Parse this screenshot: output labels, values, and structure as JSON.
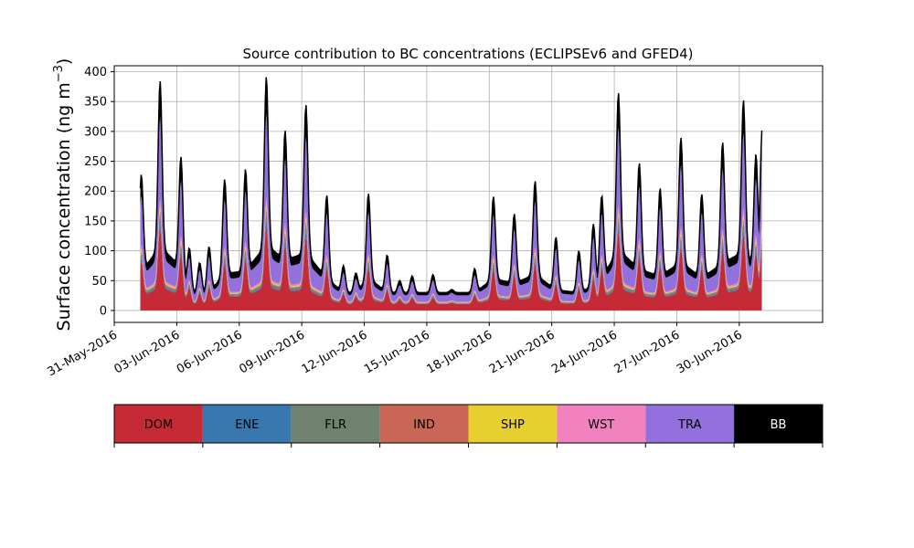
{
  "chart_data": {
    "type": "area",
    "stacked": true,
    "title": "Source contribution to BC concentrations (ECLIPSEv6 and GFED4)",
    "ylabel": "Surface concentration (ng m",
    "ylabel_superscript": "−3",
    "ylabel_close": ")",
    "xlabel": "",
    "ylim": [
      -20,
      410
    ],
    "yticks": [
      0,
      50,
      100,
      150,
      200,
      250,
      300,
      350,
      400
    ],
    "x_start": "2016-05-31",
    "xlim_days": [
      0,
      34
    ],
    "xticks": [
      {
        "day": 0,
        "label": "31-May-2016"
      },
      {
        "day": 3,
        "label": "03-Jun-2016"
      },
      {
        "day": 6,
        "label": "06-Jun-2016"
      },
      {
        "day": 9,
        "label": "09-Jun-2016"
      },
      {
        "day": 12,
        "label": "12-Jun-2016"
      },
      {
        "day": 15,
        "label": "15-Jun-2016"
      },
      {
        "day": 18,
        "label": "18-Jun-2016"
      },
      {
        "day": 21,
        "label": "21-Jun-2016"
      },
      {
        "day": 24,
        "label": "24-Jun-2016"
      },
      {
        "day": 27,
        "label": "27-Jun-2016"
      },
      {
        "day": 30,
        "label": "30-Jun-2016"
      }
    ],
    "grid": true,
    "legend_placement": "bottom",
    "legend": [
      {
        "label": "DOM",
        "color": "#c62a36",
        "text_color": "#000000"
      },
      {
        "label": "ENE",
        "color": "#3977af",
        "text_color": "#000000"
      },
      {
        "label": "FLR",
        "color": "#6f8270",
        "text_color": "#000000"
      },
      {
        "label": "IND",
        "color": "#c96757",
        "text_color": "#000000"
      },
      {
        "label": "SHP",
        "color": "#e6cf2e",
        "text_color": "#000000"
      },
      {
        "label": "WST",
        "color": "#f181bf",
        "text_color": "#000000"
      },
      {
        "label": "TRA",
        "color": "#9370db",
        "text_color": "#000000"
      },
      {
        "label": "BB",
        "color": "#000000",
        "text_color": "#ffffff"
      }
    ],
    "daily_peaks": [
      {
        "day": 1.3,
        "peak": 228
      },
      {
        "day": 2.2,
        "peak": 385
      },
      {
        "day": 3.2,
        "peak": 258
      },
      {
        "day": 3.6,
        "peak": 105
      },
      {
        "day": 4.1,
        "peak": 80
      },
      {
        "day": 4.55,
        "peak": 107
      },
      {
        "day": 5.3,
        "peak": 220
      },
      {
        "day": 6.3,
        "peak": 237
      },
      {
        "day": 7.3,
        "peak": 392
      },
      {
        "day": 8.2,
        "peak": 302
      },
      {
        "day": 9.2,
        "peak": 345
      },
      {
        "day": 10.2,
        "peak": 193
      },
      {
        "day": 11.0,
        "peak": 75
      },
      {
        "day": 11.6,
        "peak": 63
      },
      {
        "day": 12.2,
        "peak": 196
      },
      {
        "day": 13.1,
        "peak": 93
      },
      {
        "day": 13.7,
        "peak": 50
      },
      {
        "day": 14.3,
        "peak": 58
      },
      {
        "day": 15.3,
        "peak": 60
      },
      {
        "day": 16.2,
        "peak": 35
      },
      {
        "day": 17.3,
        "peak": 70
      },
      {
        "day": 18.2,
        "peak": 191
      },
      {
        "day": 19.2,
        "peak": 162
      },
      {
        "day": 20.2,
        "peak": 217
      },
      {
        "day": 21.2,
        "peak": 123
      },
      {
        "day": 22.3,
        "peak": 100
      },
      {
        "day": 23.0,
        "peak": 145
      },
      {
        "day": 23.4,
        "peak": 193
      },
      {
        "day": 24.2,
        "peak": 365
      },
      {
        "day": 25.2,
        "peak": 247
      },
      {
        "day": 26.2,
        "peak": 205
      },
      {
        "day": 27.2,
        "peak": 290
      },
      {
        "day": 28.2,
        "peak": 195
      },
      {
        "day": 29.2,
        "peak": 282
      },
      {
        "day": 30.2,
        "peak": 353
      },
      {
        "day": 30.8,
        "peak": 262
      },
      {
        "day": 31.1,
        "peak": 305
      }
    ]
  }
}
